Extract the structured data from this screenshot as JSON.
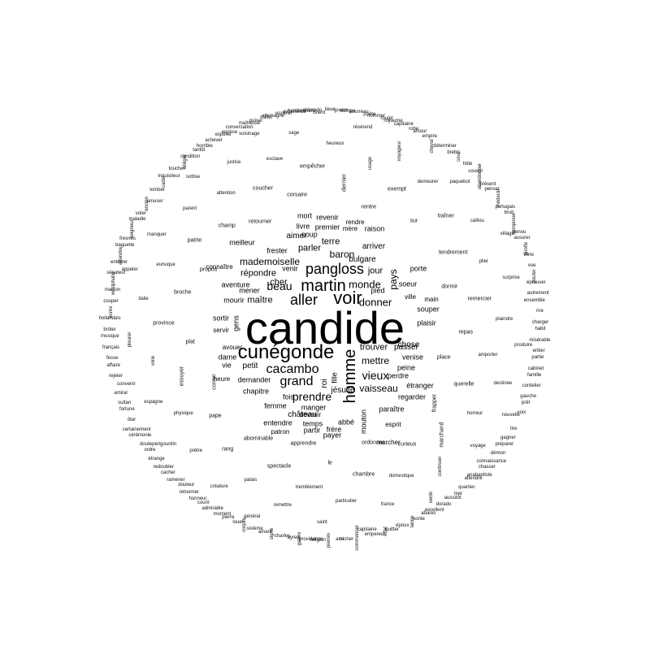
{
  "wordcloud": {
    "words": [
      "candide",
      "cunégonde",
      "voir",
      "martin",
      "pangloss",
      "aller",
      "homme",
      "cacambo",
      "beau",
      "grand",
      "prendre",
      "vieux",
      "donner",
      "mademoiselle",
      "baron",
      "monde",
      "trouver",
      "mettre",
      "terre",
      "parler",
      "vaisseau",
      "pays",
      "répondre",
      "jour",
      "maître",
      "cher",
      "aimer",
      "chose",
      "passer",
      "arriver",
      "petit",
      "jésuite",
      "château",
      "fois",
      "bulgare",
      "manger",
      "femme",
      "temps",
      "demander",
      "vie",
      "dame",
      "sortir",
      "mourir",
      "mener",
      "aventure",
      "coup",
      "souper",
      "venir",
      "main",
      "ville",
      "frère",
      "fille",
      "abbé",
      "payer",
      "chapitre",
      "venise",
      "entendre",
      "étranger",
      "plaisir",
      "regarder",
      "mouton",
      "paraître",
      "devenir",
      "partir",
      "peine",
      "pied",
      "porte",
      "soeur",
      "roi",
      "gens",
      "esprit",
      "marcher",
      "apprendre",
      "retourner",
      "patron",
      "premier",
      "revenir",
      "mort",
      "rendre",
      "raison",
      "livre",
      "frester",
      "meilleur",
      "mère",
      "place",
      "perdre",
      "connaître",
      "conter",
      "servir",
      "avouer",
      "heure",
      "rentre",
      "ordonner",
      "propos",
      "dormir",
      "abominable",
      "corsaire",
      "frapper",
      "plat",
      "sur",
      "le",
      "champ",
      "repas",
      "pape",
      "dernier",
      "curieux",
      "broche",
      "tendrement",
      "spectacle",
      "coucher",
      "querelle",
      "essuyer",
      "exempt",
      "chambre",
      "patrie",
      "remercier",
      "rang",
      "empêcher",
      "marchand",
      "province",
      "traîner",
      "tremblement",
      "attention",
      "amporter",
      "physique",
      "usage",
      "domestique",
      "eunuque",
      "plier",
      "palais",
      "esclave",
      "horreur",
      "voile",
      "demeurer",
      "particulier",
      "parent",
      "plaindre",
      "prêtre",
      "heureux",
      "continuer",
      "italie",
      "calliou",
      "remettre",
      "justice",
      "destinée",
      "espagne",
      "voyageur",
      "france",
      "manquer",
      "surprise",
      "créature",
      "servir",
      "sage",
      "voyage",
      "pleurer",
      "paquebot",
      "saint",
      "sottise",
      "produire",
      "périgourdin",
      "révérend",
      "sentir",
      "appeler",
      "village",
      "général",
      "voisinage",
      "nouvelle",
      "convenir",
      "cheval",
      "capitaine",
      "amuser",
      "ensemble",
      "rendre",
      "douleur",
      "orient",
      "attendre",
      "écrire",
      "penser",
      "ayres",
      "horrible",
      "famille",
      "certainement",
      "royaume",
      "larme",
      "fresnes",
      "vivre",
      "moment",
      "allemagne",
      "préparer",
      "fesse",
      "cour",
      "ami",
      "inquisiteur",
      "habit",
      "redoubler",
      "europe",
      "aussitôt",
      "westphalie",
      "bruit",
      "amant",
      "espèce",
      "prêt",
      "sultan",
      "amour",
      "effet",
      "voler",
      "éprouver",
      "honneur",
      "horriblement",
      "chasser",
      "brûler",
      "abandonner",
      "providence",
      "condition",
      "partie",
      "doute",
      "nommer",
      "abares",
      "attendre",
      "assurer",
      "louer",
      "puiser",
      "lire",
      "rejeter",
      "déterminer",
      "commencer",
      "tomber",
      "rire",
      "ramener",
      "lieue",
      "quartier",
      "couper",
      "médecin",
      "charles",
      "achever",
      "cordelier",
      "ôter",
      "capitaine",
      "époux",
      "seigneur",
      "vue",
      "admirable",
      "espérer",
      "démon",
      "français",
      "hôte",
      "pierres",
      "toucher",
      "misérable",
      "étrange",
      "bourreau",
      "dorado",
      "sénateur",
      "proposer",
      "sixième",
      "conversation",
      "voix",
      "amiral",
      "empire",
      "empereur",
      "ancien",
      "autrement",
      "retourner",
      "eldorado",
      "anabaptiste",
      "hollandais",
      "présent",
      "galère",
      "tantôt",
      "cabinet",
      "cérémonie",
      "rougir",
      "ponte",
      "baguette",
      "girofle",
      "pierre",
      "traiter",
      "gagner",
      "affaire",
      "brebis",
      "rocher",
      "cadix",
      "charger",
      "cacher",
      "guerre",
      "mer",
      "maison",
      "portugais",
      "signe",
      "espérer",
      "gauche",
      "fortune",
      "robe",
      "quitter",
      "maladie",
      "douter",
      "courir",
      "excellence",
      "connaissance",
      "musique",
      "couvrir",
      "religion",
      "obliger",
      "entier",
      "ordre",
      "poète",
      "excellent",
      "enterrer",
      "genou",
      "coquin",
      "maîtresse"
    ],
    "top_words": {
      "candide": "candide",
      "cunegonde": "cunégonde",
      "voir": "voir",
      "martin": "martin",
      "pangloss": "pangloss",
      "aller": "aller",
      "homme": "homme",
      "cacambo": "cacambo",
      "beau": "beau",
      "grand": "grand",
      "prendre": "prendre",
      "vieux": "vieux",
      "donner": "donner",
      "mademoiselle": "mademoiselle",
      "baron": "baron",
      "monde": "monde",
      "trouver": "trouver",
      "mettre": "mettre",
      "terre": "terre",
      "parler": "parler",
      "vaisseau": "vaisseau",
      "pays": "pays",
      "repondre": "répondre",
      "jour": "jour",
      "maitre": "maître",
      "cher": "cher",
      "aimer": "aimer",
      "chose": "chose",
      "passer": "passer",
      "arriver": "arriver",
      "petit": "petit",
      "jesuite": "jésuite",
      "chateau": "château",
      "fois": "fois",
      "bulgare": "bulgare",
      "manger": "manger",
      "femme": "femme",
      "temps": "temps",
      "demander": "demander",
      "vie": "vie",
      "dame": "dame",
      "sortir": "sortir",
      "mourir": "mourir",
      "mener": "mener",
      "aventure": "aventure",
      "coup": "coup",
      "souper": "souper",
      "venir": "venir",
      "main": "main",
      "ville": "ville",
      "frere": "frère",
      "fille": "fille",
      "abbe": "abbé",
      "payer": "payer",
      "chapitre": "chapitre",
      "venise": "venise",
      "entendre": "entendre",
      "etranger": "étranger",
      "plaisir": "plaisir",
      "regarder": "regarder",
      "mouton": "mouton",
      "paraitre": "paraître",
      "devenir": "devenir",
      "partir": "partir",
      "peine": "peine",
      "pied": "pied",
      "porte": "porte",
      "soeur": "soeur",
      "roi": "roi",
      "gens": "gens",
      "premier": "premier",
      "revenir": "revenir",
      "mort": "mort",
      "rendre": "rendre",
      "raison": "raison",
      "livre": "livre",
      "meilleur": "meilleur",
      "mere": "mère",
      "perdre": "perdre",
      "connaitre": "connaître",
      "servir": "servir",
      "avouer": "avouer",
      "heure": "heure",
      "patron": "patron",
      "esprit": "esprit",
      "marcher": "marcher",
      "frester": "frester"
    }
  }
}
